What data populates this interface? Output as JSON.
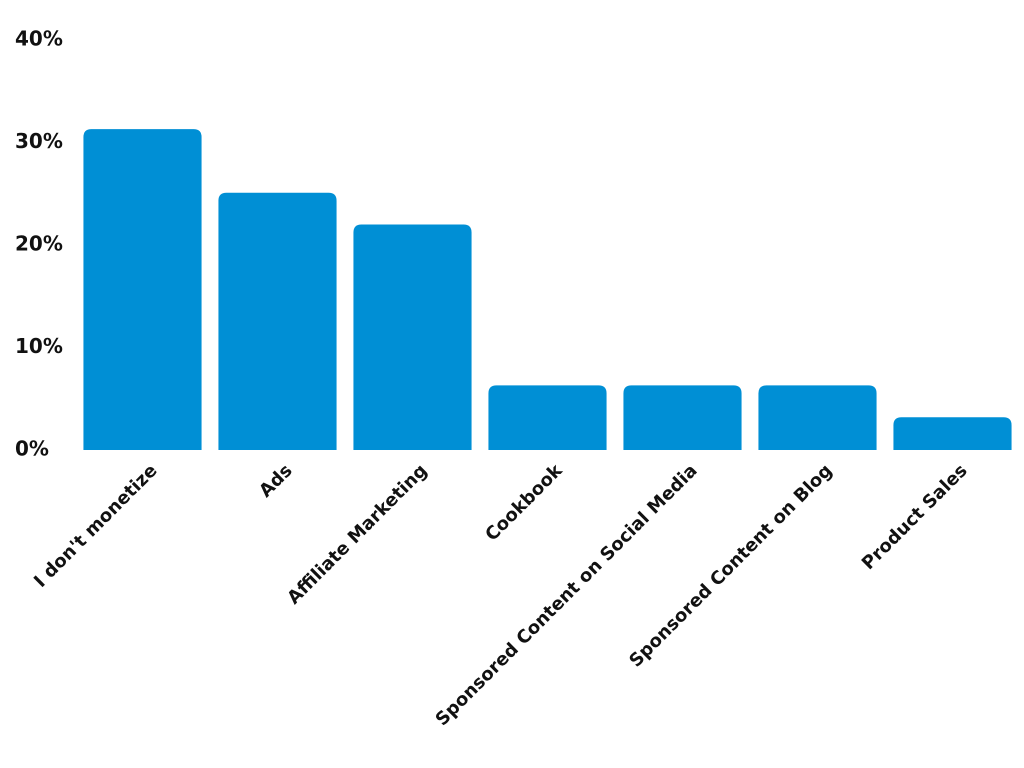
{
  "chart_data": {
    "type": "bar",
    "categories": [
      "I don't monetize",
      "Ads",
      "Affiliate Marketing",
      "Cookbook",
      "Sponsored Content on Social Media",
      "Sponsored Content on Blog",
      "Product Sales"
    ],
    "values": [
      31.3,
      25.1,
      22,
      6.3,
      6.3,
      6.3,
      3.2
    ],
    "color": "#008fd5",
    "ylim": [
      0,
      40
    ],
    "yticks": [
      {
        "value": 0,
        "label": "0%"
      },
      {
        "value": 10,
        "label": "10%"
      },
      {
        "value": 20,
        "label": "20%"
      },
      {
        "value": 30,
        "label": "30%"
      },
      {
        "value": 40,
        "label": "40%"
      }
    ],
    "grid": false
  }
}
